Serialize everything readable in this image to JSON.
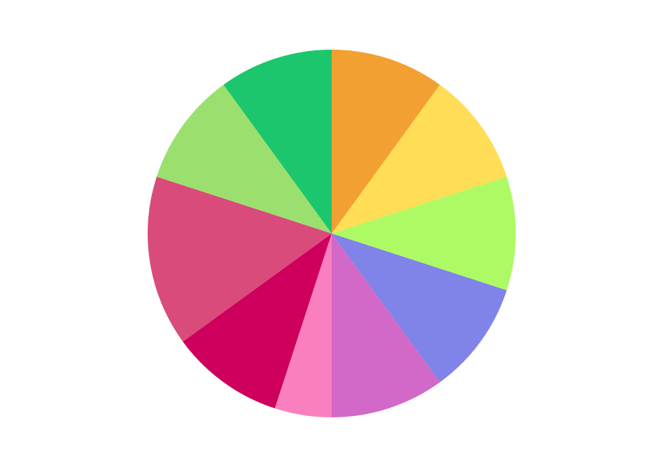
{
  "chart_data": {
    "type": "pie",
    "values": [
      10,
      10,
      10,
      10,
      10,
      5,
      10,
      15,
      10,
      10
    ],
    "colors": [
      "#f3a032",
      "#ffdd57",
      "#adfa64",
      "#8083e8",
      "#d268c8",
      "#f97fbf",
      "#cf005d",
      "#d94b7b",
      "#9be06e",
      "#1cc66c"
    ]
  }
}
